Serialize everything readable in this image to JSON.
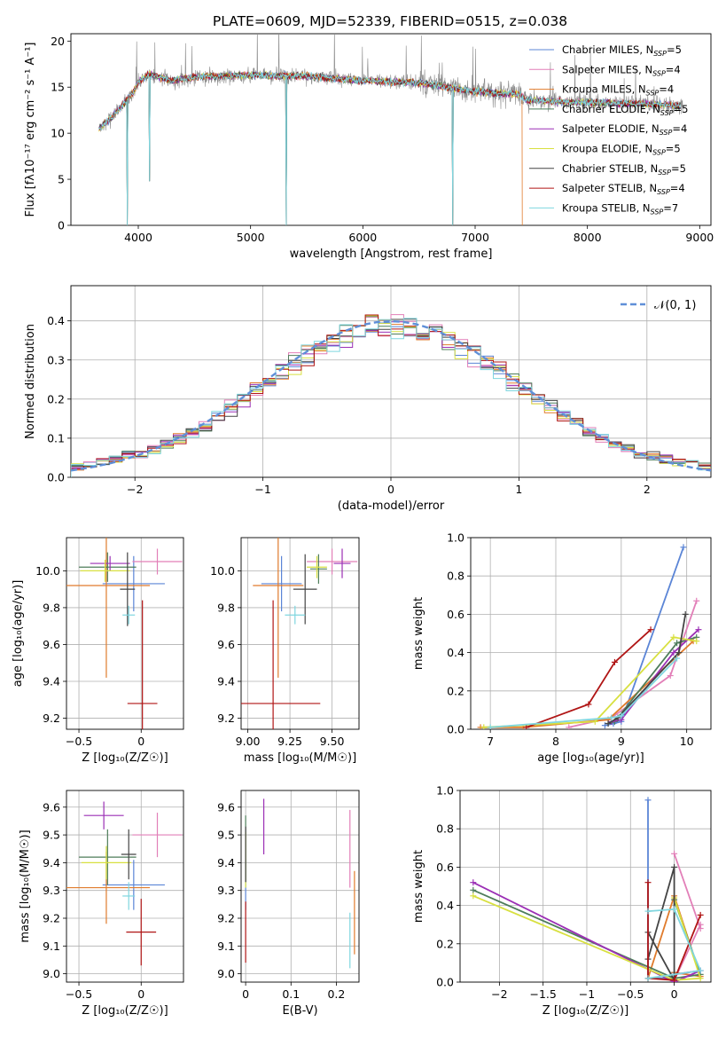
{
  "figure": {
    "title": "PLATE=0609, MJD=52339, FIBERID=0515, z=0.038"
  },
  "models": [
    {
      "name": "Chabrier MILES",
      "nssp": "5",
      "color": "#5b85d6"
    },
    {
      "name": "Salpeter MILES",
      "nssp": "4",
      "color": "#e27fb8"
    },
    {
      "name": "Kroupa MILES",
      "nssp": "4",
      "color": "#e07b2c"
    },
    {
      "name": "Chabrier ELODIE",
      "nssp": "5",
      "color": "#4e7d5a"
    },
    {
      "name": "Salpeter ELODIE",
      "nssp": "4",
      "color": "#9b2fb5"
    },
    {
      "name": "Kroupa ELODIE",
      "nssp": "5",
      "color": "#d8e040"
    },
    {
      "name": "Chabrier STELIB",
      "nssp": "5",
      "color": "#444444"
    },
    {
      "name": "Salpeter STELIB",
      "nssp": "4",
      "color": "#b01515"
    },
    {
      "name": "Kroupa STELIB",
      "nssp": "7",
      "color": "#7fd6df"
    }
  ],
  "legend_suffix": "SSP",
  "chart_data": [
    {
      "id": "spectrum",
      "type": "line",
      "xlabel": "wavelength [Angstrom, rest frame]",
      "ylabel": "Flux [fλ10⁻¹⁷ erg cm⁻² s⁻¹ A⁻¹]",
      "xlim": [
        3400,
        9100
      ],
      "ylim": [
        0,
        20.8
      ],
      "xticks": [
        4000,
        5000,
        6000,
        7000,
        8000,
        9000
      ],
      "yticks": [
        0,
        5,
        10,
        15,
        20
      ],
      "legend": "top-right",
      "grid": false,
      "continuum": {
        "x": [
          3650,
          3700,
          3800,
          3950,
          4000,
          4100,
          4300,
          4500,
          5000,
          5500,
          6000,
          6500,
          7000,
          7400,
          7450,
          8000,
          8500,
          8800
        ],
        "y": [
          10.5,
          11.0,
          12.2,
          14.4,
          15.5,
          16.4,
          15.7,
          16.1,
          16.3,
          16.2,
          15.7,
          15.5,
          14.5,
          14.2,
          13.6,
          13.3,
          13.2,
          13.0
        ]
      },
      "data_range": [
        3650,
        8850
      ],
      "model_range": [
        3650,
        7420
      ],
      "dips": [
        [
          3900,
          0
        ],
        [
          4100,
          4.8
        ],
        [
          5320,
          0
        ],
        [
          6800,
          0
        ]
      ]
    },
    {
      "id": "residuals",
      "type": "histogram",
      "xlabel": "(data-model)/error",
      "ylabel": "Normed distribution",
      "xlim": [
        -2.5,
        2.5
      ],
      "ylim": [
        0,
        0.49
      ],
      "xticks": [
        -2,
        -1,
        0,
        1,
        2
      ],
      "yticks": [
        0.0,
        0.1,
        0.2,
        0.3,
        0.4
      ],
      "reference": {
        "name": "𝒩(0, 1)",
        "mean": 0,
        "sigma": 1
      },
      "bin_width": 0.1,
      "grid": true,
      "legend": "top-right"
    },
    {
      "id": "age-vs-z",
      "type": "errorbar",
      "xlabel": "Z [log₁₀(Z/Z☉)]",
      "ylabel": "age  [log₁₀(age/yr)]",
      "xlim": [
        -0.6,
        0.34
      ],
      "ylim": [
        9.14,
        10.18
      ],
      "xticks": [
        -0.5,
        0.0
      ],
      "yticks": [
        9.2,
        9.4,
        9.6,
        9.8,
        10.0
      ],
      "grid": true,
      "points": [
        {
          "x": -0.06,
          "y": 9.93,
          "xerr": 0.25,
          "yerr": 0.15
        },
        {
          "x": 0.13,
          "y": 10.05,
          "xerr": 0.2,
          "yerr": 0.07
        },
        {
          "x": -0.28,
          "y": 9.92,
          "xerr": 0.35,
          "yerr": 0.5
        },
        {
          "x": -0.27,
          "y": 10.02,
          "xerr": 0.23,
          "yerr": 0.08
        },
        {
          "x": -0.25,
          "y": 10.04,
          "xerr": 0.16,
          "yerr": 0.04
        },
        {
          "x": -0.29,
          "y": 10.0,
          "xerr": 0.2,
          "yerr": 0.06
        },
        {
          "x": -0.11,
          "y": 9.9,
          "xerr": 0.06,
          "yerr": 0.2
        },
        {
          "x": 0.01,
          "y": 9.28,
          "xerr": 0.12,
          "yerr": 0.56
        },
        {
          "x": -0.1,
          "y": 9.76,
          "xerr": 0.05,
          "yerr": 0.05
        }
      ]
    },
    {
      "id": "age-vs-mass",
      "type": "errorbar",
      "xlabel": "mass [log₁₀(M/M☉)]",
      "ylabel": "",
      "xlim": [
        8.96,
        9.66
      ],
      "ylim": [
        9.14,
        10.18
      ],
      "xticks": [
        9.0,
        9.25,
        9.5
      ],
      "xtick_labels": [
        "9.00",
        "9.25",
        "9.50"
      ],
      "yticks": [
        9.2,
        9.4,
        9.6,
        9.8,
        10.0
      ],
      "grid": true,
      "points": [
        {
          "x": 9.2,
          "y": 9.93,
          "xerr": 0.12,
          "yerr": 0.15
        },
        {
          "x": 9.5,
          "y": 10.05,
          "xerr": 0.15,
          "yerr": 0.07
        },
        {
          "x": 9.18,
          "y": 9.92,
          "xerr": 0.15,
          "yerr": 0.5
        },
        {
          "x": 9.42,
          "y": 10.01,
          "xerr": 0.05,
          "yerr": 0.08
        },
        {
          "x": 9.56,
          "y": 10.04,
          "xerr": 0.05,
          "yerr": 0.08
        },
        {
          "x": 9.41,
          "y": 10.02,
          "xerr": 0.06,
          "yerr": 0.06
        },
        {
          "x": 9.34,
          "y": 9.9,
          "xerr": 0.07,
          "yerr": 0.19
        },
        {
          "x": 9.15,
          "y": 9.28,
          "xerr": 0.28,
          "yerr": 0.56
        },
        {
          "x": 9.28,
          "y": 9.76,
          "xerr": 0.06,
          "yerr": 0.05
        }
      ]
    },
    {
      "id": "mass-weight-vs-age",
      "type": "line",
      "xlabel": "age  [log₁₀(age/yr)]",
      "ylabel": "mass weight",
      "xlim": [
        6.7,
        10.37
      ],
      "ylim": [
        0,
        1.0
      ],
      "xticks": [
        7,
        8,
        9,
        10
      ],
      "yticks": [
        0.0,
        0.2,
        0.4,
        0.6,
        0.8,
        1.0
      ],
      "grid": true,
      "series": [
        {
          "x": [
            8.75,
            8.88,
            9.0,
            9.95
          ],
          "y": [
            0.02,
            0.03,
            0.04,
            0.95
          ]
        },
        {
          "x": [
            8.2,
            8.85,
            9.75,
            10.15
          ],
          "y": [
            0.01,
            0.06,
            0.28,
            0.67
          ]
        },
        {
          "x": [
            6.85,
            7.5,
            8.8,
            10.1
          ],
          "y": [
            0.01,
            0.01,
            0.05,
            0.46
          ]
        },
        {
          "x": [
            8.8,
            8.9,
            9.85,
            10.15
          ],
          "y": [
            0.03,
            0.04,
            0.45,
            0.48
          ]
        },
        {
          "x": [
            8.85,
            9.0,
            9.8,
            10.18
          ],
          "y": [
            0.04,
            0.05,
            0.4,
            0.52
          ]
        },
        {
          "x": [
            6.9,
            8.6,
            9.8,
            10.15
          ],
          "y": [
            0.01,
            0.04,
            0.48,
            0.46
          ]
        },
        {
          "x": [
            8.8,
            8.95,
            9.88,
            9.98
          ],
          "y": [
            0.03,
            0.06,
            0.4,
            0.6
          ]
        },
        {
          "x": [
            7.55,
            8.5,
            8.9,
            9.45
          ],
          "y": [
            0.01,
            0.13,
            0.35,
            0.52
          ]
        },
        {
          "x": [
            7.0,
            8.85,
            9.0,
            9.85
          ],
          "y": [
            0.01,
            0.06,
            0.07,
            0.37
          ]
        }
      ]
    },
    {
      "id": "mass-vs-z",
      "type": "errorbar",
      "xlabel": "Z [log₁₀(Z/Z☉)]",
      "ylabel": "mass [log₁₀(M/M☉)]",
      "xlim": [
        -0.6,
        0.34
      ],
      "ylim": [
        8.97,
        9.66
      ],
      "xticks": [
        -0.5,
        0.0
      ],
      "yticks": [
        9.0,
        9.1,
        9.2,
        9.3,
        9.4,
        9.5,
        9.6
      ],
      "grid": true,
      "points": [
        {
          "x": -0.06,
          "y": 9.32,
          "xerr": 0.25,
          "yerr": 0.09
        },
        {
          "x": 0.13,
          "y": 9.5,
          "xerr": 0.2,
          "yerr": 0.08
        },
        {
          "x": -0.28,
          "y": 9.31,
          "xerr": 0.35,
          "yerr": 0.13
        },
        {
          "x": -0.27,
          "y": 9.42,
          "xerr": 0.23,
          "yerr": 0.1
        },
        {
          "x": -0.3,
          "y": 9.57,
          "xerr": 0.16,
          "yerr": 0.05
        },
        {
          "x": -0.28,
          "y": 9.4,
          "xerr": 0.2,
          "yerr": 0.06
        },
        {
          "x": -0.1,
          "y": 9.43,
          "xerr": 0.06,
          "yerr": 0.09
        },
        {
          "x": 0.0,
          "y": 9.15,
          "xerr": 0.12,
          "yerr": 0.12
        },
        {
          "x": -0.1,
          "y": 9.28,
          "xerr": 0.05,
          "yerr": 0.05
        }
      ]
    },
    {
      "id": "mass-vs-ebv",
      "type": "errorbar",
      "xlabel": "E(B-V)",
      "ylabel": "",
      "xlim": [
        -0.01,
        0.25
      ],
      "ylim": [
        8.97,
        9.66
      ],
      "xticks": [
        0.0,
        0.1,
        0.2
      ],
      "yticks": [
        9.0,
        9.1,
        9.2,
        9.3,
        9.4,
        9.5,
        9.6
      ],
      "grid": true,
      "points": [
        {
          "x": 0.0,
          "y": 9.32,
          "xerr": 0.0,
          "yerr": 0.09
        },
        {
          "x": 0.23,
          "y": 9.45,
          "xerr": 0.0,
          "yerr": 0.14
        },
        {
          "x": 0.24,
          "y": 9.22,
          "xerr": 0.0,
          "yerr": 0.15
        },
        {
          "x": 0.0,
          "y": 9.45,
          "xerr": 0.0,
          "yerr": 0.12
        },
        {
          "x": 0.04,
          "y": 9.53,
          "xerr": 0.0,
          "yerr": 0.1
        },
        {
          "x": 0.0,
          "y": 9.41,
          "xerr": 0.0,
          "yerr": 0.1
        },
        {
          "x": 0.0,
          "y": 9.43,
          "xerr": 0.0,
          "yerr": 0.1
        },
        {
          "x": 0.0,
          "y": 9.15,
          "xerr": 0.0,
          "yerr": 0.11
        },
        {
          "x": 0.23,
          "y": 9.12,
          "xerr": 0.0,
          "yerr": 0.1
        }
      ]
    },
    {
      "id": "mass-weight-vs-z",
      "type": "line",
      "xlabel": "Z [log₁₀(Z/Z☉)]",
      "ylabel": "mass weight",
      "xlim": [
        -2.45,
        0.42
      ],
      "ylim": [
        0,
        1.0
      ],
      "xticks": [
        -2.0,
        -1.5,
        -1.0,
        -0.5,
        0.0
      ],
      "yticks": [
        0.0,
        0.2,
        0.4,
        0.6,
        0.8,
        1.0
      ],
      "grid": true,
      "series": [
        {
          "x": [
            -0.3,
            -0.3,
            0.0,
            0.0
          ],
          "y": [
            0.95,
            0.02,
            0.02,
            0.05
          ]
        },
        {
          "x": [
            0.0,
            0.3,
            0.3,
            0.0
          ],
          "y": [
            0.67,
            0.28,
            0.3,
            0.01
          ]
        },
        {
          "x": [
            -0.3,
            0.0,
            0.3,
            0.0
          ],
          "y": [
            0.02,
            0.45,
            0.03,
            0.05
          ]
        },
        {
          "x": [
            -2.3,
            0.0,
            0.3,
            0.0
          ],
          "y": [
            0.48,
            0.02,
            0.04,
            0.43
          ]
        },
        {
          "x": [
            -2.3,
            0.0,
            0.3,
            0.0
          ],
          "y": [
            0.52,
            0.0,
            0.06,
            0.04
          ]
        },
        {
          "x": [
            -2.3,
            0.0,
            0.3,
            0.0
          ],
          "y": [
            0.45,
            0.01,
            0.02,
            0.44
          ]
        },
        {
          "x": [
            -0.3,
            0.0,
            0.0,
            -0.3
          ],
          "y": [
            0.26,
            0.01,
            0.6,
            0.12
          ]
        },
        {
          "x": [
            -0.3,
            -0.3,
            0.0,
            0.3
          ],
          "y": [
            0.52,
            0.02,
            0.01,
            0.35
          ]
        },
        {
          "x": [
            -0.3,
            0.0,
            0.3,
            -0.3
          ],
          "y": [
            0.37,
            0.38,
            0.06,
            0.02
          ]
        }
      ]
    }
  ]
}
